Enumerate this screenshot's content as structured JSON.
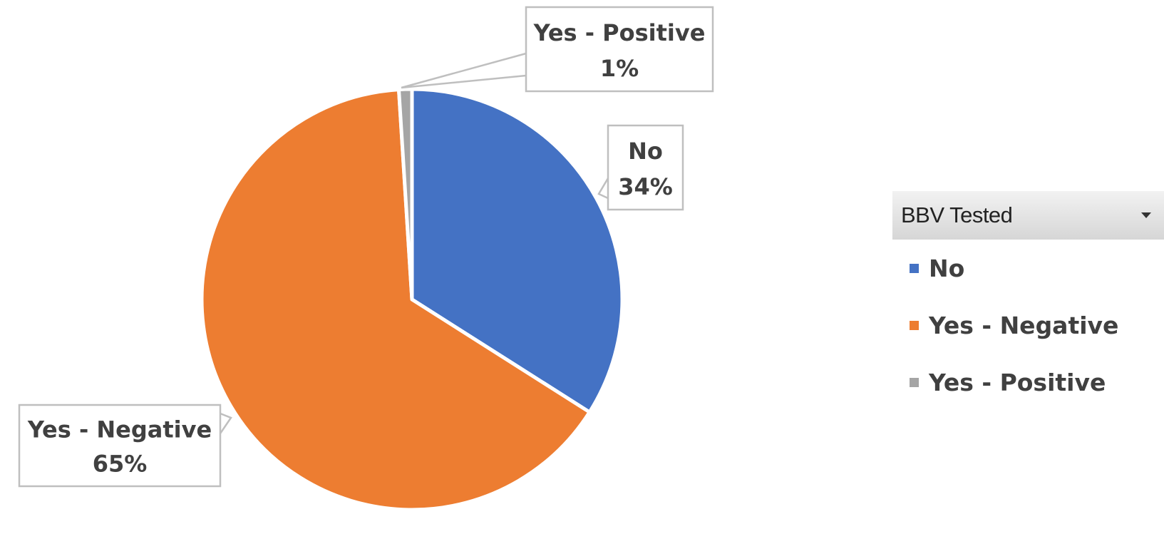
{
  "chart_data": {
    "type": "pie",
    "title": "",
    "categories": [
      "No",
      "Yes - Negative",
      "Yes - Positive"
    ],
    "values": [
      34,
      65,
      1
    ],
    "colors": [
      "#4472c4",
      "#ed7d31",
      "#a5a5a5"
    ],
    "data_labels": [
      {
        "category": "No",
        "percent": "34%"
      },
      {
        "category": "Yes - Negative",
        "percent": "65%"
      },
      {
        "category": "Yes - Positive",
        "percent": "1%"
      }
    ],
    "legend": {
      "title": "BBV Tested",
      "placement": "right",
      "items": [
        "No",
        "Yes - Negative",
        "Yes - Positive"
      ]
    }
  }
}
